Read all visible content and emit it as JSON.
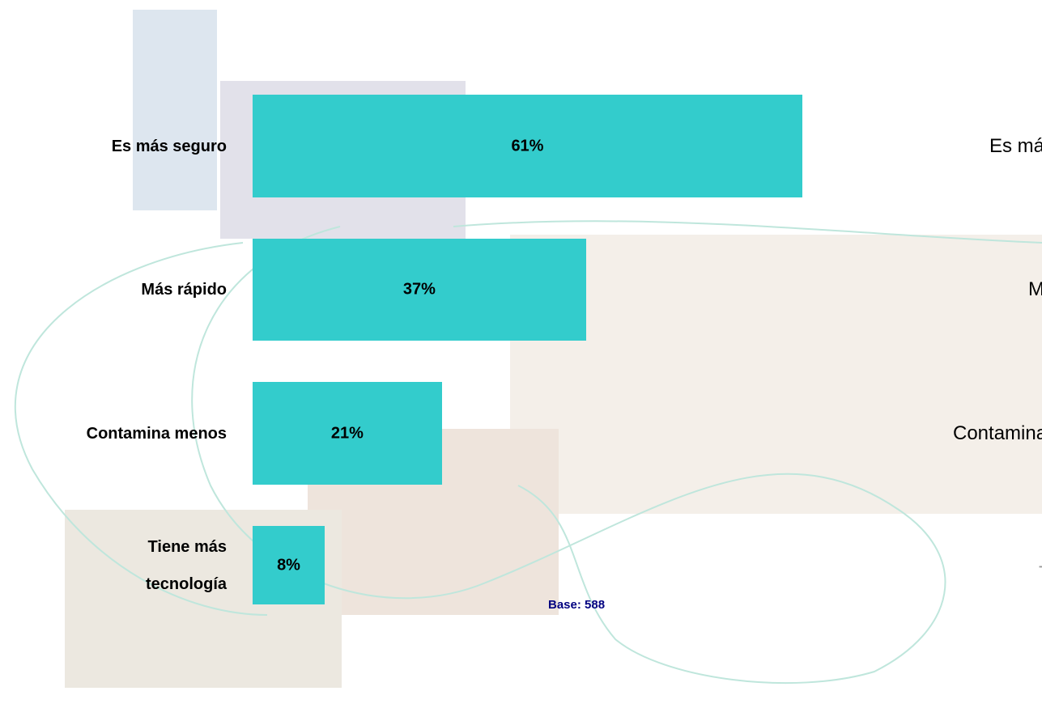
{
  "chart_data": {
    "type": "bar",
    "orientation": "horizontal",
    "categories": [
      "Es más seguro",
      "Más rápido",
      "Contamina menos",
      "Tiene más tecnología"
    ],
    "values": [
      61,
      37,
      21,
      8
    ],
    "value_labels": [
      "61%",
      "37%",
      "21%",
      "8%"
    ],
    "color": "#33cccc",
    "xlim": [
      0,
      100
    ],
    "note": "Base: 588"
  }
}
